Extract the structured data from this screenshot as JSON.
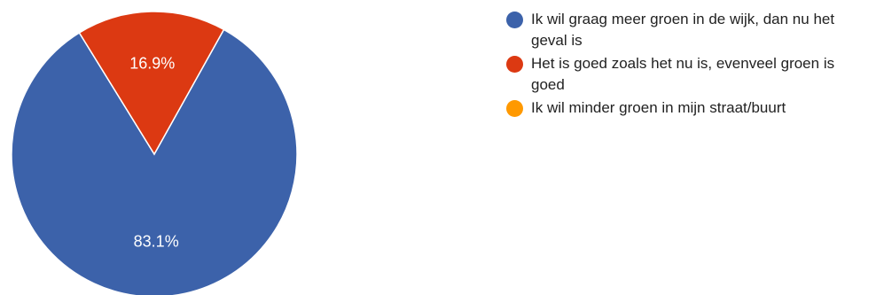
{
  "chart_data": {
    "type": "pie",
    "title": "",
    "slices": [
      {
        "label": "Ik wil graag meer groen in de wijk, dan nu het geval is",
        "value": 83.1,
        "display": "83.1%",
        "color": "#3c62aa"
      },
      {
        "label": "Het is goed zoals het nu is, evenveel groen is goed",
        "value": 16.9,
        "display": "16.9%",
        "color": "#dc3912"
      },
      {
        "label": "Ik wil minder groen in mijn straat/buurt",
        "value": 0,
        "display": "",
        "color": "#ff9900"
      }
    ],
    "legend_position": "right"
  },
  "legend": {
    "items": [
      {
        "label": "Ik wil graag meer groen in de wijk, dan nu het geval is",
        "color": "#3c62aa"
      },
      {
        "label": "Het is goed zoals het nu is, evenveel groen is goed",
        "color": "#dc3912"
      },
      {
        "label": "Ik wil minder groen in mijn straat/buurt",
        "color": "#ff9900"
      }
    ]
  }
}
